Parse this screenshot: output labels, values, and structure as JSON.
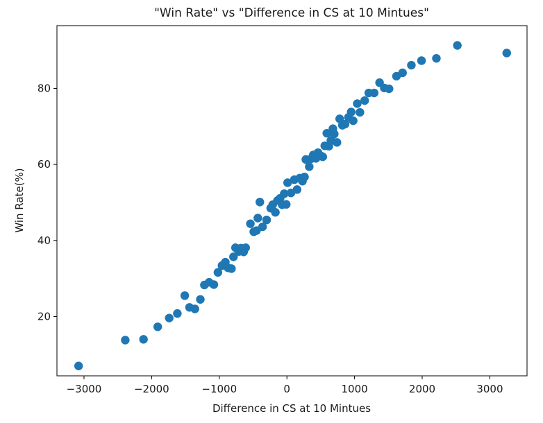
{
  "chart_data": {
    "type": "scatter",
    "title": "\"Win Rate\" vs \"Difference in CS at 10 Mintues\"",
    "xlabel": "Difference in CS at 10 Mintues",
    "ylabel": "Win Rate(%)",
    "xlim": [
      -3400,
      3550
    ],
    "ylim": [
      4.4,
      96.5
    ],
    "xticks": [
      -3000,
      -2000,
      -1000,
      0,
      1000,
      2000,
      3000
    ],
    "xtick_labels": [
      "−3000",
      "−2000",
      "−1000",
      "0",
      "1000",
      "2000",
      "3000"
    ],
    "yticks": [
      20,
      40,
      60,
      80
    ],
    "ytick_labels": [
      "20",
      "40",
      "60",
      "80"
    ],
    "grid": false,
    "marker_color": "#1f77b4",
    "series": [
      {
        "points": [
          [
            -3080,
            7.0
          ],
          [
            -2390,
            13.8
          ],
          [
            -2120,
            14.0
          ],
          [
            -1910,
            17.3
          ],
          [
            -1740,
            19.6
          ],
          [
            -1620,
            20.8
          ],
          [
            -1510,
            25.5
          ],
          [
            -1440,
            22.4
          ],
          [
            -1360,
            22.0
          ],
          [
            -1280,
            24.5
          ],
          [
            -1220,
            28.3
          ],
          [
            -1150,
            29.0
          ],
          [
            -1080,
            28.4
          ],
          [
            -1020,
            31.6
          ],
          [
            -960,
            33.4
          ],
          [
            -910,
            34.3
          ],
          [
            -870,
            32.8
          ],
          [
            -820,
            32.6
          ],
          [
            -790,
            35.7
          ],
          [
            -760,
            38.1
          ],
          [
            -710,
            37.1
          ],
          [
            -680,
            38.0
          ],
          [
            -640,
            37.0
          ],
          [
            -610,
            38.1
          ],
          [
            -540,
            44.4
          ],
          [
            -490,
            42.3
          ],
          [
            -450,
            42.6
          ],
          [
            -430,
            45.9
          ],
          [
            -400,
            50.1
          ],
          [
            -360,
            43.6
          ],
          [
            -300,
            45.4
          ],
          [
            -240,
            48.5
          ],
          [
            -210,
            49.4
          ],
          [
            -170,
            47.4
          ],
          [
            -140,
            50.5
          ],
          [
            -100,
            51.1
          ],
          [
            -70,
            49.4
          ],
          [
            -40,
            52.3
          ],
          [
            -10,
            49.5
          ],
          [
            10,
            55.2
          ],
          [
            60,
            52.5
          ],
          [
            110,
            56.0
          ],
          [
            150,
            53.4
          ],
          [
            190,
            56.4
          ],
          [
            230,
            55.6
          ],
          [
            260,
            56.7
          ],
          [
            280,
            61.3
          ],
          [
            330,
            59.4
          ],
          [
            360,
            61.5
          ],
          [
            390,
            62.5
          ],
          [
            430,
            61.6
          ],
          [
            460,
            63.1
          ],
          [
            510,
            62.2
          ],
          [
            530,
            62.0
          ],
          [
            560,
            64.9
          ],
          [
            590,
            68.2
          ],
          [
            620,
            64.8
          ],
          [
            650,
            66.3
          ],
          [
            680,
            69.4
          ],
          [
            700,
            68.0
          ],
          [
            740,
            65.8
          ],
          [
            780,
            72.0
          ],
          [
            820,
            70.3
          ],
          [
            860,
            70.6
          ],
          [
            910,
            72.4
          ],
          [
            950,
            73.8
          ],
          [
            980,
            71.5
          ],
          [
            1040,
            76.0
          ],
          [
            1080,
            73.7
          ],
          [
            1150,
            76.8
          ],
          [
            1210,
            78.8
          ],
          [
            1290,
            78.8
          ],
          [
            1370,
            81.5
          ],
          [
            1440,
            80.1
          ],
          [
            1510,
            79.9
          ],
          [
            1620,
            83.2
          ],
          [
            1710,
            84.1
          ],
          [
            1840,
            86.1
          ],
          [
            1990,
            87.3
          ],
          [
            2210,
            87.9
          ],
          [
            2520,
            91.3
          ],
          [
            3250,
            89.3
          ]
        ]
      }
    ]
  }
}
